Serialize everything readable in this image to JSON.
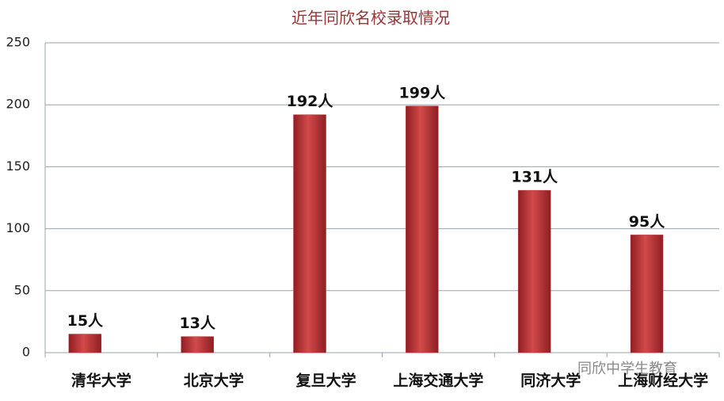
{
  "chart_data": {
    "type": "bar",
    "title": "近年同欣名校录取情况",
    "categories": [
      "清华大学",
      "北京大学",
      "复旦大学",
      "上海交通大学",
      "同济大学",
      "上海财经大学"
    ],
    "values": [
      15,
      13,
      192,
      199,
      131,
      95
    ],
    "value_labels": [
      "15人",
      "13人",
      "192人",
      "199人",
      "131人",
      "95人"
    ],
    "color": "#c0393b",
    "ylim": [
      0,
      250
    ],
    "yticks": [
      0,
      50,
      100,
      150,
      200,
      250
    ],
    "grid": true,
    "watermark": "同欣中学生教育"
  }
}
